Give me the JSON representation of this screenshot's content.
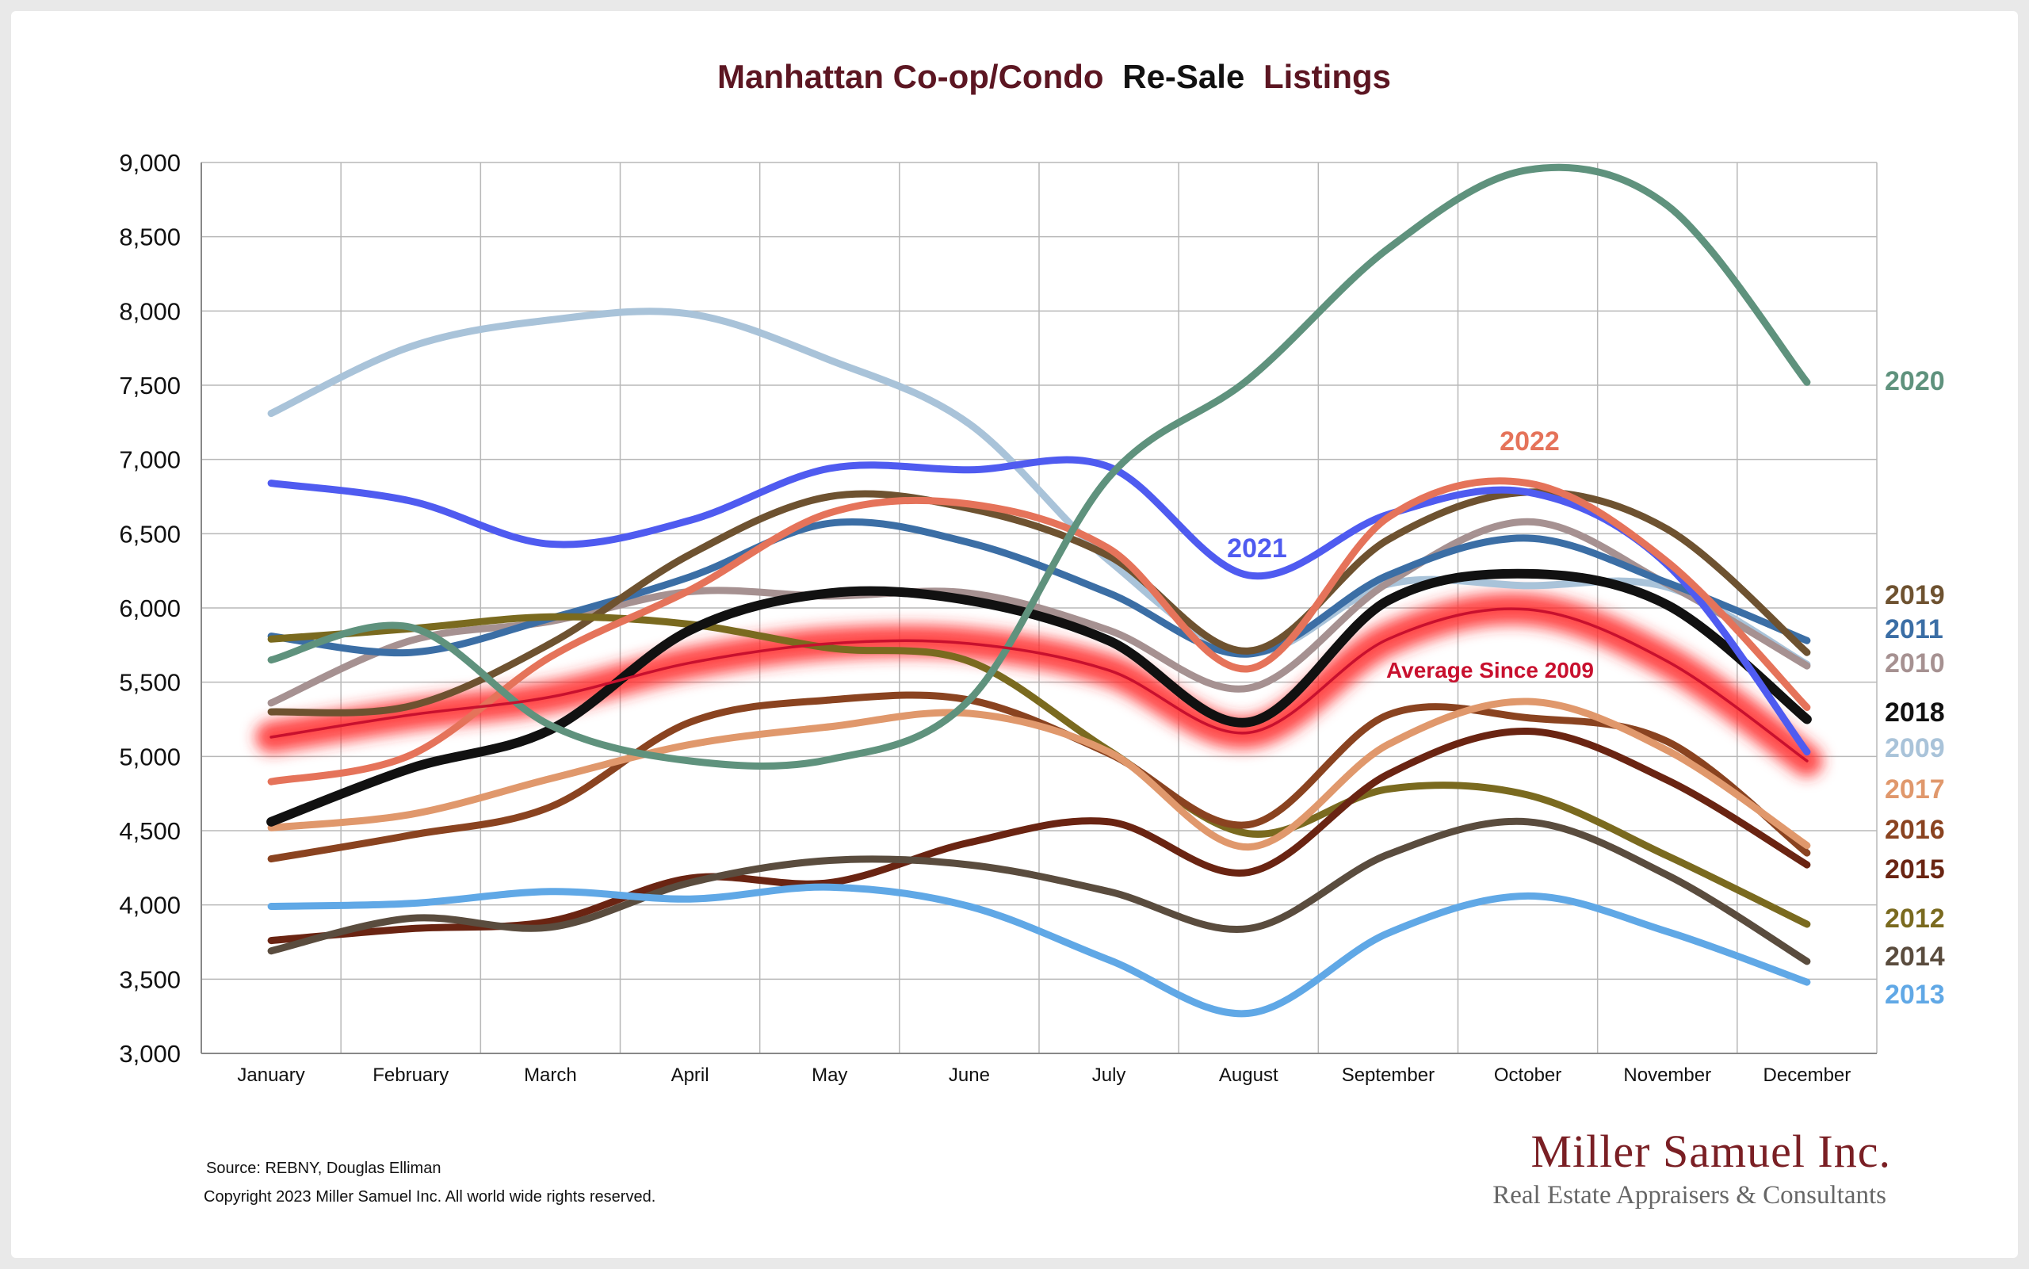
{
  "header": {
    "title_part1": "Manhattan Co-op/Condo",
    "title_part2": "Re-Sale",
    "title_part3": "Listings"
  },
  "footer": {
    "source": "Source: REBNY, Douglas Elliman",
    "copyright": "Copyright 2023 Miller Samuel Inc.  All world wide rights reserved.",
    "brand_name": "Miller Samuel Inc.",
    "brand_tagline": "Real Estate Appraisers & Consultants"
  },
  "chart_data": {
    "type": "line",
    "title": "Manhattan Co-op/Condo Re-Sale Listings",
    "xlabel": "",
    "ylabel": "",
    "categories": [
      "January",
      "February",
      "March",
      "April",
      "May",
      "June",
      "July",
      "August",
      "September",
      "October",
      "November",
      "December"
    ],
    "ylim": [
      3000,
      9000
    ],
    "yticks": [
      3000,
      3500,
      4000,
      4500,
      5000,
      5500,
      6000,
      6500,
      7000,
      7500,
      8000,
      8500,
      9000
    ],
    "ytick_labels": [
      "3,000",
      "3,500",
      "4,000",
      "4,500",
      "5,000",
      "5,500",
      "6,000",
      "6,500",
      "7,000",
      "7,500",
      "8,000",
      "8,500",
      "9,000"
    ],
    "grid": true,
    "legend": "right (labels at line ends)",
    "series": [
      {
        "name": "Average  Since 2009",
        "color": "#c8102e",
        "highlight": true,
        "values": [
          5130,
          5280,
          5400,
          5630,
          5760,
          5760,
          5580,
          5160,
          5790,
          5990,
          5640,
          4970
        ]
      },
      {
        "name": "2009",
        "color": "#a9c3d9",
        "values": [
          7310,
          7760,
          7940,
          7980,
          7670,
          7240,
          6320,
          5700,
          6160,
          6150,
          6140,
          5620
        ]
      },
      {
        "name": "2010",
        "color": "#a69191",
        "values": [
          5360,
          5780,
          5910,
          6110,
          6080,
          6100,
          5850,
          5460,
          6170,
          6580,
          6160,
          5610
        ]
      },
      {
        "name": "2011",
        "color": "#3b6ea5",
        "values": [
          5810,
          5700,
          5930,
          6210,
          6570,
          6440,
          6100,
          5690,
          6220,
          6470,
          6170,
          5780
        ]
      },
      {
        "name": "2012",
        "color": "#7a6a1f",
        "values": [
          5790,
          5860,
          5940,
          5890,
          5730,
          5640,
          5040,
          4480,
          4780,
          4740,
          4330,
          3870
        ]
      },
      {
        "name": "2013",
        "color": "#60a8e6",
        "values": [
          3990,
          4010,
          4090,
          4040,
          4120,
          3990,
          3630,
          3270,
          3810,
          4060,
          3820,
          3480
        ]
      },
      {
        "name": "2014",
        "color": "#5a4c3e",
        "values": [
          3690,
          3910,
          3850,
          4150,
          4300,
          4270,
          4090,
          3840,
          4340,
          4560,
          4200,
          3620
        ]
      },
      {
        "name": "2015",
        "color": "#6a2412",
        "values": [
          3760,
          3840,
          3890,
          4180,
          4150,
          4420,
          4560,
          4220,
          4880,
          5170,
          4840,
          4270
        ]
      },
      {
        "name": "2016",
        "color": "#8a4320",
        "values": [
          4310,
          4470,
          4660,
          5230,
          5380,
          5380,
          5020,
          4540,
          5280,
          5260,
          5100,
          4350
        ]
      },
      {
        "name": "2017",
        "color": "#e0986c",
        "values": [
          4520,
          4610,
          4850,
          5080,
          5200,
          5290,
          5030,
          4390,
          5080,
          5370,
          5040,
          4400
        ]
      },
      {
        "name": "2018",
        "color": "#111111",
        "values": [
          4560,
          4920,
          5180,
          5850,
          6100,
          6050,
          5780,
          5230,
          6050,
          6230,
          6020,
          5250
        ]
      },
      {
        "name": "2019",
        "color": "#6e5230",
        "values": [
          5300,
          5340,
          5760,
          6360,
          6750,
          6670,
          6350,
          5710,
          6460,
          6780,
          6530,
          5700
        ]
      },
      {
        "name": "2020",
        "color": "#5f927d",
        "values": [
          5650,
          5870,
          5210,
          4970,
          4980,
          5380,
          6880,
          7540,
          8420,
          8950,
          8710,
          7520
        ]
      },
      {
        "name": "2021",
        "color": "#4f5bf0",
        "values": [
          6840,
          6720,
          6430,
          6590,
          6940,
          6930,
          6950,
          6220,
          6630,
          6780,
          6290,
          5030
        ]
      },
      {
        "name": "2022",
        "color": "#e5735a",
        "values": [
          4830,
          5010,
          5670,
          6120,
          6640,
          6700,
          6400,
          5590,
          6610,
          6840,
          6310,
          5330
        ]
      }
    ]
  }
}
